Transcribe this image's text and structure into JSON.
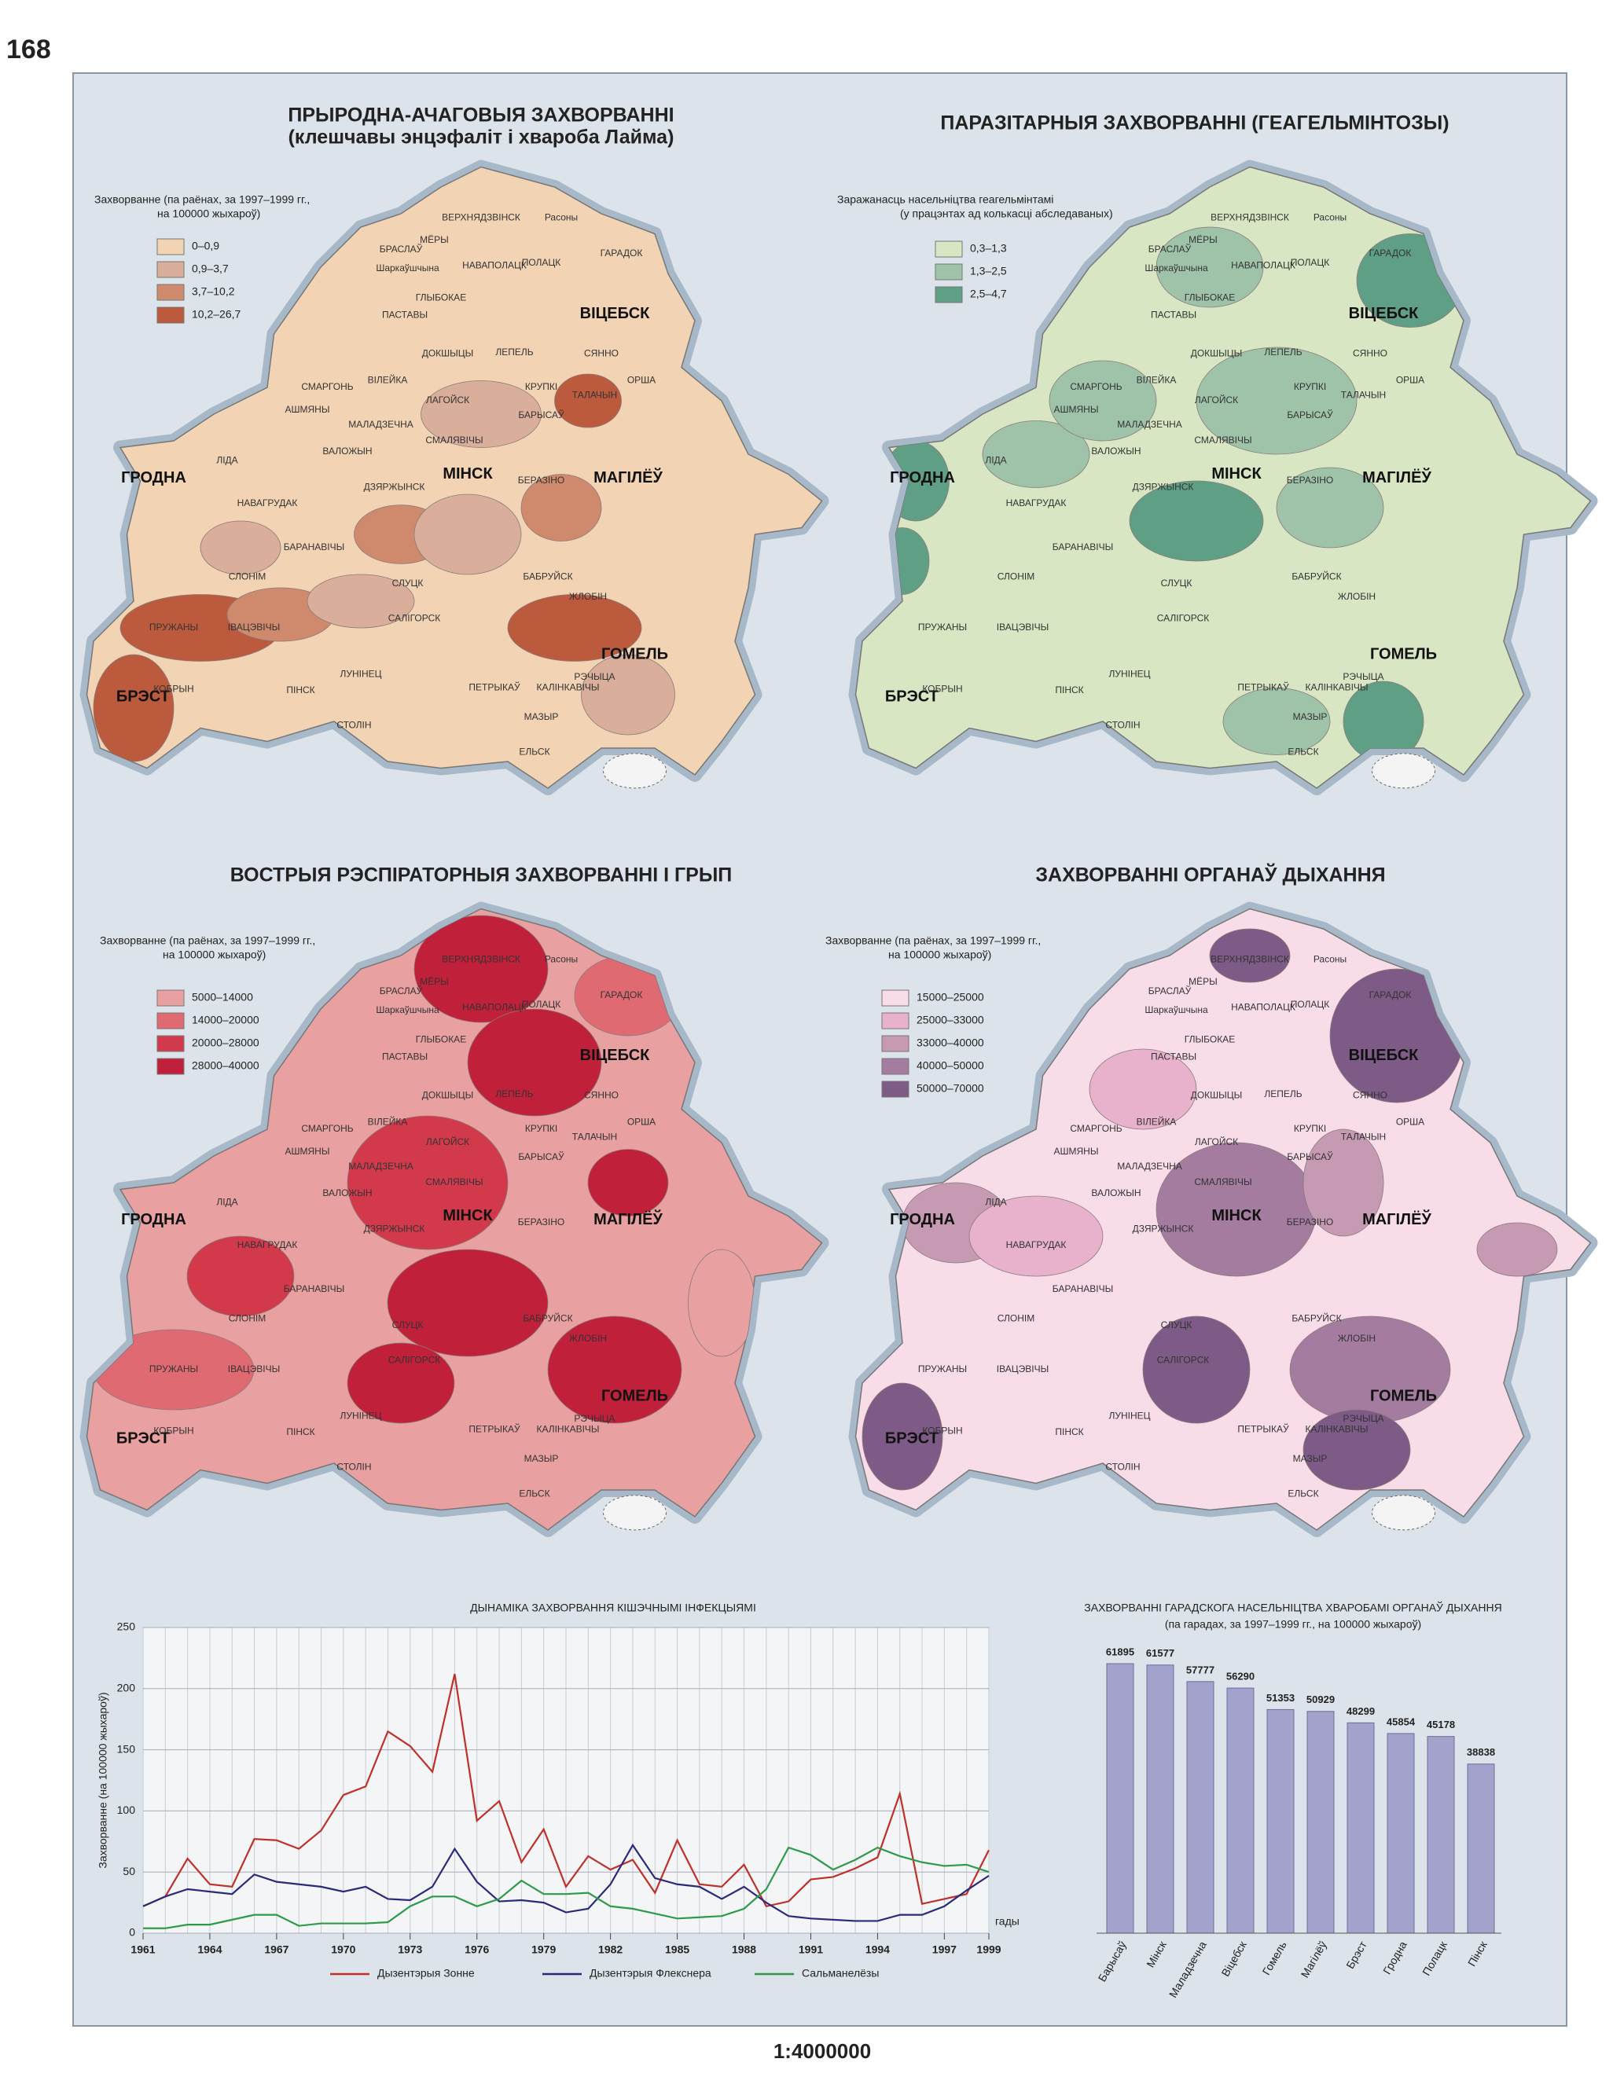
{
  "page_number": "168",
  "scale": "1:4000000",
  "maps": [
    {
      "title": [
        "ПРЫРОДНА-АЧАГОВЫЯ ЗАХВОРВАННІ",
        "(клешчавы энцэфаліт і хвароба Лайма)"
      ],
      "legend_title": [
        "Захворванне (па раёнах, за 1997–1999 гг.,",
        "на 100000 жыхароў)"
      ],
      "classes": [
        {
          "label": "0–0,9",
          "color": "#f2d3b3"
        },
        {
          "label": "0,9–3,7",
          "color": "#d9ae9a"
        },
        {
          "label": "3,7–10,2",
          "color": "#cf8a6d"
        },
        {
          "label": "10,2–26,7",
          "color": "#bc5a3e"
        }
      ]
    },
    {
      "title": [
        "ПАРАЗІТАРНЫЯ ЗАХВОРВАННІ (ГЕАГЕЛЬМІНТОЗЫ)"
      ],
      "legend_title": [
        "Заражанасць насельніцтва геагельмінтамі",
        "(у працэнтах ад колькасці абследаваных)"
      ],
      "classes": [
        {
          "label": "0,3–1,3",
          "color": "#d8e6c4"
        },
        {
          "label": "1,3–2,5",
          "color": "#9fc3a8"
        },
        {
          "label": "2,5–4,7",
          "color": "#5f9f86"
        }
      ]
    },
    {
      "title": [
        "ВОСТРЫЯ РЭСПІРАТОРНЫЯ ЗАХВОРВАННІ І ГРЫП"
      ],
      "legend_title": [
        "Захворванне (па раёнах, за 1997–1999 гг.,",
        "на 100000 жыхароў)"
      ],
      "classes": [
        {
          "label": "5000–14000",
          "color": "#e8a0a0"
        },
        {
          "label": "14000–20000",
          "color": "#e06a72"
        },
        {
          "label": "20000–28000",
          "color": "#d23a4b"
        },
        {
          "label": "28000–40000",
          "color": "#c0203a"
        }
      ]
    },
    {
      "title": [
        "ЗАХВОРВАННІ ОРГАНАЎ ДЫХАННЯ"
      ],
      "legend_title": [
        "Захворванне (па раёнах, за 1997–1999 гг.,",
        "на 100000 жыхароў)"
      ],
      "classes": [
        {
          "label": "15000–25000",
          "color": "#f8dde8"
        },
        {
          "label": "25000–33000",
          "color": "#e8b2cc"
        },
        {
          "label": "33000–40000",
          "color": "#c79ab4"
        },
        {
          "label": "40000–50000",
          "color": "#a47ca0"
        },
        {
          "label": "50000–70000",
          "color": "#7d5b86"
        }
      ]
    }
  ],
  "places": [
    "ВЕРХНЯДЗВІНСК",
    "Расоны",
    "ГАРАДОК",
    "ПОЛАЦК",
    "МЁРЫ",
    "БРАСЛАЎ",
    "Шаркаўшчына",
    "НАВАПОЛАЦК",
    "ГЛЫБОКАЕ",
    "ПАСТАВЫ",
    "ВІЦЕБСК",
    "ДОКШЫЦЫ",
    "ЛЕПЕЛЬ",
    "СЯННО",
    "ВІЛЕЙКА",
    "СМАРГОНЬ",
    "АШМЯНЫ",
    "ЛАГОЙСК",
    "БАРЫСАЎ",
    "ТАЛАЧЫН",
    "КРУПКІ",
    "ОРША",
    "МАЛАДЗЕЧНА",
    "СМАЛЯВІЧЫ",
    "ГРОДНА",
    "МІНСК",
    "МАГІЛЁЎ",
    "ЛІДА",
    "ВАЛОЖЫН",
    "НАВАГРУДАК",
    "ДЗЯРЖЫНСК",
    "БЕРАЗІНО",
    "СЛОНІМ",
    "БАРАНАВІЧЫ",
    "СЛУЦК",
    "БАБРУЙСК",
    "ПРУЖАНЫ",
    "ІВАЦЭВІЧЫ",
    "ГОМЕЛЬ",
    "БРЭСТ",
    "КОБРЫН",
    "ПІНСК",
    "ЛУНІНЕЦ",
    "МАЗЫР",
    "ЖЛОБІН",
    "РЭЧЫЦА",
    "СТОЛІН",
    "ЕЛЬСК",
    "КАЛІНКАВІЧЫ",
    "САЛІГОРСК",
    "ПЕТРЫКАЎ"
  ],
  "chart_data": [
    {
      "type": "line",
      "title": "ДЫНАМІКА ЗАХВОРВАННЯ КІШЭЧНЫМІ ІНФЕКЦЫЯМІ",
      "x_label": "гады",
      "y_label": "Захворванне (на 100000 жыхароў)",
      "x": [
        1961,
        1962,
        1963,
        1964,
        1965,
        1966,
        1967,
        1968,
        1969,
        1970,
        1971,
        1972,
        1973,
        1974,
        1975,
        1976,
        1977,
        1978,
        1979,
        1980,
        1981,
        1982,
        1983,
        1984,
        1985,
        1986,
        1987,
        1988,
        1989,
        1990,
        1991,
        1992,
        1993,
        1994,
        1995,
        1996,
        1997,
        1998,
        1999
      ],
      "series": [
        {
          "name": "Дызентэрыя Зонне",
          "color": "#c0302a",
          "values": [
            22,
            30,
            61,
            40,
            38,
            77,
            76,
            69,
            84,
            113,
            120,
            165,
            153,
            132,
            212,
            92,
            108,
            58,
            85,
            38,
            63,
            52,
            60,
            33,
            76,
            40,
            38,
            56,
            22,
            26,
            44,
            46,
            53,
            62,
            114,
            24,
            28,
            32,
            68
          ]
        },
        {
          "name": "Дызентэрыя Флекснера",
          "color": "#2a2a7a",
          "values": [
            22,
            30,
            36,
            34,
            32,
            48,
            42,
            40,
            38,
            34,
            38,
            28,
            27,
            38,
            69,
            42,
            26,
            27,
            25,
            17,
            20,
            40,
            72,
            45,
            40,
            38,
            28,
            38,
            25,
            14,
            12,
            11,
            10,
            10,
            15,
            15,
            22,
            35,
            47
          ]
        },
        {
          "name": "Сальманелёзы",
          "color": "#2e9a4a",
          "values": [
            4,
            4,
            7,
            7,
            11,
            15,
            15,
            6,
            8,
            8,
            8,
            9,
            22,
            30,
            30,
            22,
            28,
            43,
            32,
            32,
            33,
            22,
            20,
            16,
            12,
            13,
            14,
            20,
            36,
            70,
            64,
            52,
            60,
            70,
            63,
            58,
            55,
            56,
            50
          ]
        }
      ],
      "xlim": [
        1961,
        1999
      ],
      "xticks": [
        1961,
        1964,
        1967,
        1970,
        1973,
        1976,
        1979,
        1982,
        1985,
        1988,
        1991,
        1994,
        1997,
        1999
      ],
      "ylim": [
        0,
        250
      ],
      "yticks": [
        0,
        50,
        100,
        150,
        200,
        250
      ],
      "grid": true
    },
    {
      "type": "bar",
      "title": [
        "ЗАХВОРВАННІ ГАРАДСКОГА НАСЕЛЬНІЦТВА ХВАРОБАМІ ОРГАНАЎ ДЫХАННЯ",
        "(па гарадах, за 1997–1999 гг., на 100000 жыхароў)"
      ],
      "categories": [
        "Барысаў",
        "Мінск",
        "Маладзечна",
        "Віцебск",
        "Гомель",
        "Магілёў",
        "Брэст",
        "Гродна",
        "Полацк",
        "Пінск"
      ],
      "values": [
        61895,
        61577,
        57777,
        56290,
        51353,
        50929,
        48299,
        45854,
        45178,
        38838
      ],
      "color": "#a3a2cc"
    }
  ]
}
